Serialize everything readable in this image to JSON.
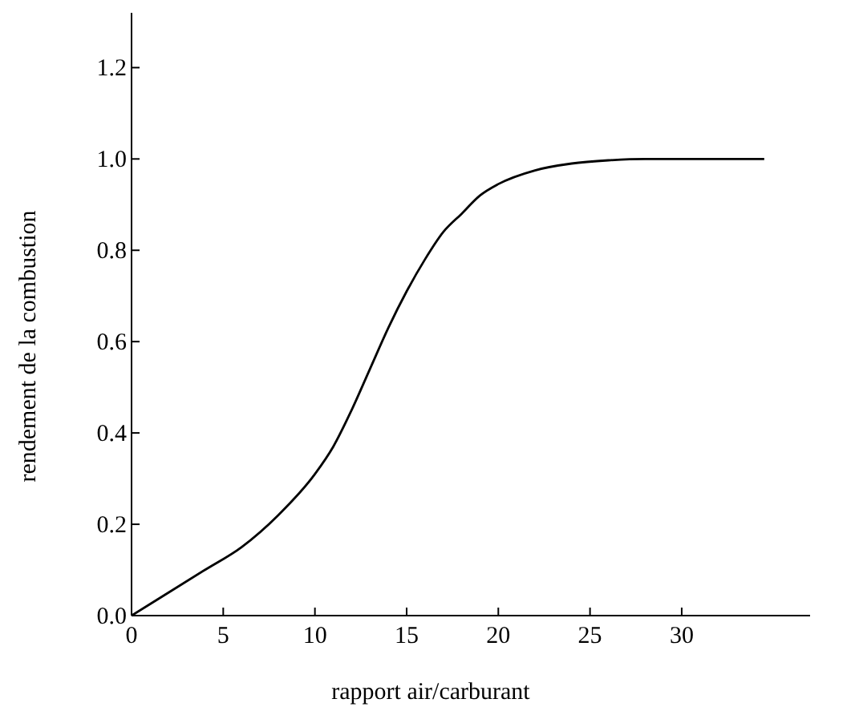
{
  "chart_data": {
    "type": "line",
    "xlabel": "rapport air/carburant",
    "ylabel": "rendement de la combustion",
    "xlim": [
      0,
      37
    ],
    "ylim": [
      0,
      1.32
    ],
    "xticks": [
      0,
      5,
      10,
      15,
      20,
      25,
      30
    ],
    "yticks": [
      {
        "value": 0,
        "label": "0.0"
      },
      {
        "value": 0.2,
        "label": "0.2"
      },
      {
        "value": 0.4,
        "label": "0.4"
      },
      {
        "value": 0.6,
        "label": "0.6"
      },
      {
        "value": 0.8,
        "label": "0.8"
      },
      {
        "value": 1,
        "label": "1.0"
      },
      {
        "value": 1.2,
        "label": "1.2"
      }
    ],
    "series": [
      {
        "color": "#000000",
        "x": [
          0,
          2,
          4,
          6,
          8,
          10,
          11,
          12,
          13,
          14,
          15,
          16,
          17,
          18,
          19,
          20,
          22,
          24,
          26,
          28,
          30,
          34.5
        ],
        "values": [
          0,
          0.05,
          0.1,
          0.15,
          0.22,
          0.31,
          0.37,
          0.45,
          0.54,
          0.63,
          0.71,
          0.78,
          0.84,
          0.88,
          0.92,
          0.945,
          0.975,
          0.99,
          0.997,
          1,
          1,
          1
        ]
      }
    ]
  }
}
